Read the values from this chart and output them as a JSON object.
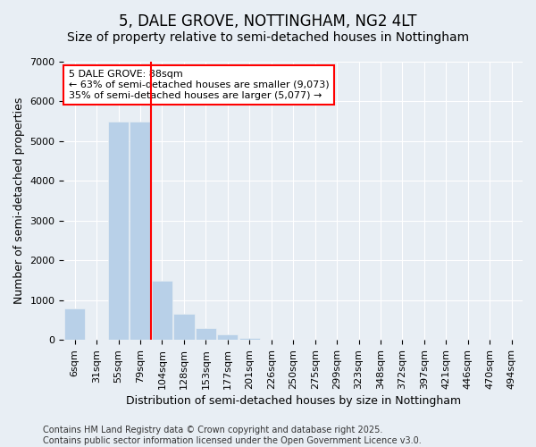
{
  "title": "5, DALE GROVE, NOTTINGHAM, NG2 4LT",
  "subtitle": "Size of property relative to semi-detached houses in Nottingham",
  "xlabel": "Distribution of semi-detached houses by size in Nottingham",
  "ylabel": "Number of semi-detached properties",
  "categories": [
    "6sqm",
    "31sqm",
    "55sqm",
    "79sqm",
    "104sqm",
    "128sqm",
    "153sqm",
    "177sqm",
    "201sqm",
    "226sqm",
    "250sqm",
    "275sqm",
    "299sqm",
    "323sqm",
    "348sqm",
    "372sqm",
    "397sqm",
    "421sqm",
    "446sqm",
    "470sqm",
    "494sqm"
  ],
  "values": [
    800,
    0,
    5500,
    5500,
    1500,
    650,
    300,
    130,
    50,
    10,
    0,
    0,
    0,
    0,
    0,
    0,
    0,
    0,
    0,
    0,
    0
  ],
  "bar_color": "#b8d0e8",
  "property_line_x": 3.5,
  "property_label": "5 DALE GROVE: 88sqm",
  "annotation_smaller": "← 63% of semi-detached houses are smaller (9,073)",
  "annotation_larger": "35% of semi-detached houses are larger (5,077) →",
  "ylim": [
    0,
    7000
  ],
  "footnote1": "Contains HM Land Registry data © Crown copyright and database right 2025.",
  "footnote2": "Contains public sector information licensed under the Open Government Licence v3.0.",
  "title_fontsize": 12,
  "subtitle_fontsize": 10,
  "axis_label_fontsize": 9,
  "tick_fontsize": 8,
  "footnote_fontsize": 7,
  "background_color": "#e8eef4"
}
